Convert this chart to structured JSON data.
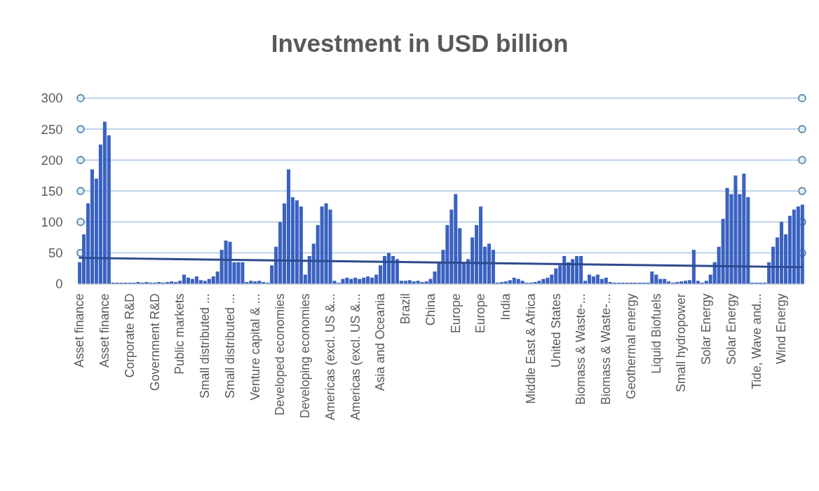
{
  "chart_data": {
    "type": "bar",
    "title": "Investment in USD billion",
    "categories": [
      "Asset finance",
      null,
      null,
      null,
      null,
      null,
      "Asset finance",
      null,
      null,
      null,
      null,
      null,
      "Corporate R&D",
      null,
      null,
      null,
      null,
      null,
      "Government R&D",
      null,
      null,
      null,
      null,
      null,
      "Public markets",
      null,
      null,
      null,
      null,
      null,
      "Small distributed ...",
      null,
      null,
      null,
      null,
      null,
      "Small distributed ...",
      null,
      null,
      null,
      null,
      null,
      "Venture capital & ...",
      null,
      null,
      null,
      null,
      null,
      "Developed economies",
      null,
      null,
      null,
      null,
      null,
      "Developing economies",
      null,
      null,
      null,
      null,
      null,
      "Americas (excl. US &...",
      null,
      null,
      null,
      null,
      null,
      "Americas (excl. US &...",
      null,
      null,
      null,
      null,
      null,
      "Asia and Oceania",
      null,
      null,
      null,
      null,
      null,
      "Brazil",
      null,
      null,
      null,
      null,
      null,
      "China",
      null,
      null,
      null,
      null,
      null,
      "Europe",
      null,
      null,
      null,
      null,
      null,
      "Europe",
      null,
      null,
      null,
      null,
      null,
      "India",
      null,
      null,
      null,
      null,
      null,
      "Middle East & Africa",
      null,
      null,
      null,
      null,
      null,
      "United States",
      null,
      null,
      null,
      null,
      null,
      "Biomass & Waste-...",
      null,
      null,
      null,
      null,
      null,
      "Biomass & Waste-...",
      null,
      null,
      null,
      null,
      null,
      "Geothermal energy",
      null,
      null,
      null,
      null,
      null,
      "Liquid Biofuels",
      null,
      null,
      null,
      null,
      null,
      "Small hydropower",
      null,
      null,
      null,
      null,
      null,
      "Solar Energy",
      null,
      null,
      null,
      null,
      null,
      "Solar Energy",
      null,
      null,
      null,
      null,
      null,
      "Tide, Wave and...",
      null,
      null,
      null,
      null,
      null,
      "Wind Energy",
      null,
      null,
      null,
      null,
      null
    ],
    "series": [
      {
        "color": "#3a62c0",
        "values": [
          35,
          80,
          130,
          185,
          170,
          225,
          262,
          240,
          2,
          2,
          2,
          2,
          2,
          2,
          3,
          2,
          3,
          2,
          2,
          3,
          2,
          3,
          4,
          3,
          5,
          15,
          10,
          8,
          12,
          6,
          5,
          8,
          12,
          20,
          55,
          70,
          68,
          35,
          35,
          35,
          3,
          5,
          4,
          5,
          3,
          2,
          30,
          60,
          100,
          130,
          185,
          140,
          135,
          125,
          15,
          45,
          65,
          95,
          125,
          130,
          120,
          5,
          2,
          8,
          10,
          8,
          10,
          8,
          10,
          12,
          10,
          15,
          30,
          45,
          50,
          45,
          40,
          5,
          5,
          6,
          4,
          5,
          3,
          4,
          8,
          20,
          35,
          55,
          95,
          120,
          145,
          90,
          35,
          40,
          75,
          95,
          125,
          60,
          65,
          55,
          2,
          3,
          4,
          6,
          10,
          8,
          5,
          2,
          2,
          3,
          5,
          8,
          10,
          15,
          25,
          30,
          45,
          35,
          40,
          45,
          45,
          5,
          15,
          12,
          15,
          8,
          10,
          3,
          2,
          2,
          2,
          2,
          2,
          2,
          2,
          2,
          2,
          20,
          15,
          8,
          8,
          4,
          2,
          3,
          4,
          5,
          6,
          55,
          5,
          2,
          5,
          15,
          35,
          60,
          105,
          155,
          145,
          175,
          145,
          178,
          140,
          2,
          2,
          2,
          2,
          35,
          60,
          75,
          100,
          80,
          110,
          120,
          125,
          128
        ]
      },
      {
        "type": "line",
        "color": "#2c4a8e",
        "values": [
          42,
          null,
          null,
          null,
          null,
          null,
          null,
          null,
          null,
          null,
          null,
          null,
          null,
          null,
          null,
          null,
          null,
          null,
          null,
          null,
          null,
          null,
          null,
          null,
          null,
          null,
          null,
          null,
          null,
          null,
          null,
          null,
          null,
          null,
          null,
          null,
          null,
          null,
          null,
          null,
          null,
          null,
          null,
          null,
          null,
          null,
          null,
          null,
          null,
          null,
          null,
          null,
          null,
          null,
          null,
          null,
          null,
          null,
          null,
          null,
          null,
          null,
          null,
          null,
          null,
          null,
          null,
          null,
          null,
          null,
          null,
          null,
          null,
          null,
          null,
          null,
          null,
          null,
          null,
          null,
          null,
          null,
          null,
          null,
          null,
          null,
          null,
          null,
          null,
          null,
          null,
          null,
          null,
          null,
          null,
          null,
          null,
          null,
          null,
          null,
          null,
          null,
          null,
          null,
          null,
          null,
          null,
          null,
          null,
          null,
          null,
          null,
          null,
          null,
          null,
          null,
          null,
          null,
          null,
          null,
          null,
          null,
          null,
          null,
          null,
          null,
          null,
          null,
          null,
          null,
          null,
          null,
          null,
          null,
          null,
          null,
          null,
          null,
          null,
          null,
          null,
          null,
          null,
          null,
          null,
          null,
          null,
          null,
          null,
          null,
          null,
          null,
          null,
          null,
          null,
          null,
          null,
          null,
          null,
          null,
          null,
          null,
          null,
          null,
          null,
          null,
          null,
          null,
          null,
          null,
          null,
          null,
          null,
          27
        ]
      }
    ],
    "ylim": [
      0,
      300
    ],
    "yticks": [
      0,
      50,
      100,
      150,
      200,
      250,
      300
    ],
    "grid": "y"
  }
}
